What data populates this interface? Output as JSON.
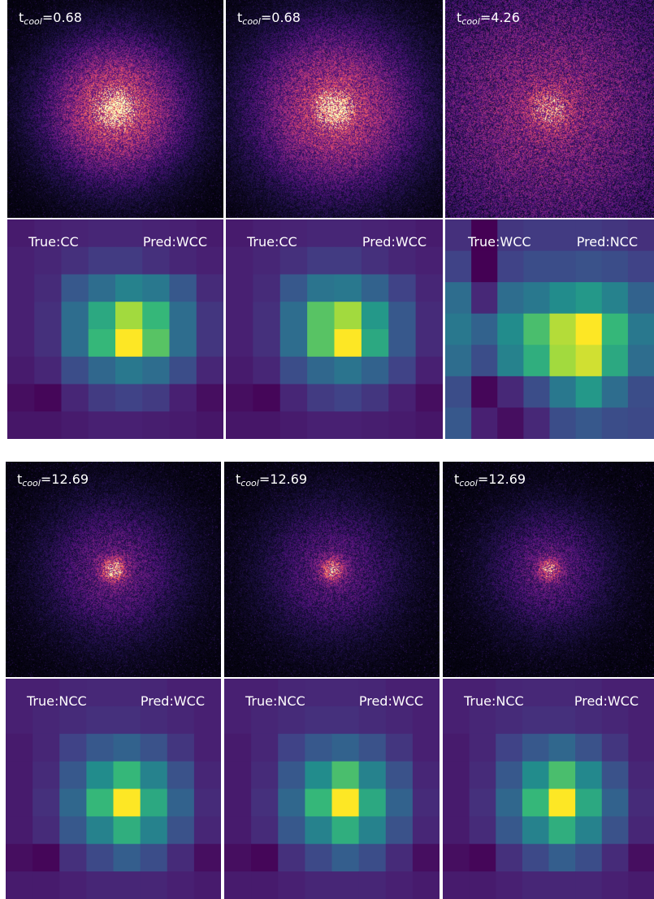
{
  "figure": {
    "groups": [
      {
        "columns": [
          {
            "t_cool": "0.68",
            "true_label": "True:CC",
            "pred_label": "Pred:WCC",
            "xray": {
              "blob_intensity": 0.95,
              "blob_spread": 0.22,
              "background_noise": 0.1,
              "core_brightness": 1.0
            },
            "heatmap": [
              [
                0.1,
                0.12,
                0.13,
                0.14,
                0.14,
                0.13,
                0.12,
                0.1
              ],
              [
                0.12,
                0.14,
                0.18,
                0.22,
                0.22,
                0.18,
                0.14,
                0.12
              ],
              [
                0.12,
                0.16,
                0.35,
                0.45,
                0.55,
                0.5,
                0.35,
                0.16
              ],
              [
                0.12,
                0.18,
                0.45,
                0.7,
                0.9,
                0.75,
                0.45,
                0.2
              ],
              [
                0.12,
                0.18,
                0.45,
                0.75,
                1.0,
                0.8,
                0.45,
                0.2
              ],
              [
                0.1,
                0.14,
                0.3,
                0.42,
                0.5,
                0.45,
                0.3,
                0.14
              ],
              [
                0.05,
                0.02,
                0.14,
                0.22,
                0.25,
                0.22,
                0.12,
                0.05
              ],
              [
                0.08,
                0.08,
                0.1,
                0.12,
                0.12,
                0.11,
                0.1,
                0.08
              ]
            ]
          },
          {
            "t_cool": "0.68",
            "true_label": "True:CC",
            "pred_label": "Pred:WCC",
            "xray": {
              "blob_intensity": 0.85,
              "blob_spread": 0.26,
              "background_noise": 0.1,
              "core_brightness": 0.9
            },
            "heatmap": [
              [
                0.1,
                0.12,
                0.13,
                0.14,
                0.14,
                0.13,
                0.12,
                0.1
              ],
              [
                0.12,
                0.14,
                0.18,
                0.22,
                0.22,
                0.18,
                0.14,
                0.12
              ],
              [
                0.12,
                0.16,
                0.35,
                0.48,
                0.5,
                0.4,
                0.25,
                0.14
              ],
              [
                0.12,
                0.18,
                0.45,
                0.8,
                0.9,
                0.65,
                0.35,
                0.16
              ],
              [
                0.12,
                0.18,
                0.45,
                0.8,
                1.0,
                0.7,
                0.35,
                0.16
              ],
              [
                0.1,
                0.14,
                0.3,
                0.42,
                0.48,
                0.4,
                0.25,
                0.12
              ],
              [
                0.05,
                0.02,
                0.14,
                0.22,
                0.25,
                0.2,
                0.12,
                0.05
              ],
              [
                0.08,
                0.08,
                0.1,
                0.12,
                0.12,
                0.11,
                0.1,
                0.08
              ]
            ]
          },
          {
            "t_cool": "4.26",
            "true_label": "True:WCC",
            "pred_label": "Pred:NCC",
            "xray": {
              "blob_intensity": 0.45,
              "blob_spread": 0.4,
              "background_noise": 0.55,
              "core_brightness": 0.5
            },
            "heatmap": [
              [
                0.18,
                0.0,
                0.2,
                0.22,
                0.22,
                0.22,
                0.2,
                0.18
              ],
              [
                0.25,
                0.0,
                0.25,
                0.3,
                0.3,
                0.32,
                0.3,
                0.25
              ],
              [
                0.45,
                0.15,
                0.45,
                0.5,
                0.6,
                0.65,
                0.55,
                0.4
              ],
              [
                0.5,
                0.4,
                0.6,
                0.78,
                0.92,
                1.0,
                0.75,
                0.5
              ],
              [
                0.45,
                0.3,
                0.55,
                0.72,
                0.9,
                0.95,
                0.7,
                0.45
              ],
              [
                0.3,
                0.02,
                0.15,
                0.3,
                0.5,
                0.65,
                0.45,
                0.3
              ],
              [
                0.35,
                0.12,
                0.05,
                0.15,
                0.3,
                0.35,
                0.3,
                0.28
              ]
            ]
          }
        ]
      },
      {
        "columns": [
          {
            "t_cool": "12.69",
            "true_label": "True:NCC",
            "pred_label": "Pred:WCC",
            "xray": {
              "blob_intensity": 0.45,
              "blob_spread": 0.22,
              "background_noise": 0.12,
              "core_brightness": 0.9
            },
            "heatmap": [
              [
                0.12,
                0.12,
                0.14,
                0.15,
                0.15,
                0.14,
                0.12,
                0.12
              ],
              [
                0.12,
                0.14,
                0.16,
                0.18,
                0.18,
                0.16,
                0.14,
                0.12
              ],
              [
                0.1,
                0.14,
                0.25,
                0.35,
                0.4,
                0.32,
                0.2,
                0.12
              ],
              [
                0.1,
                0.16,
                0.35,
                0.6,
                0.75,
                0.55,
                0.32,
                0.14
              ],
              [
                0.1,
                0.18,
                0.42,
                0.75,
                1.0,
                0.7,
                0.4,
                0.16
              ],
              [
                0.1,
                0.16,
                0.35,
                0.55,
                0.72,
                0.55,
                0.32,
                0.14
              ],
              [
                0.05,
                0.02,
                0.18,
                0.28,
                0.38,
                0.3,
                0.16,
                0.05
              ],
              [
                0.1,
                0.1,
                0.12,
                0.14,
                0.14,
                0.14,
                0.12,
                0.1
              ]
            ]
          },
          {
            "t_cool": "12.69",
            "true_label": "True:NCC",
            "pred_label": "Pred:WCC",
            "xray": {
              "blob_intensity": 0.4,
              "blob_spread": 0.22,
              "background_noise": 0.12,
              "core_brightness": 0.8
            },
            "heatmap": [
              [
                0.12,
                0.12,
                0.14,
                0.15,
                0.15,
                0.14,
                0.12,
                0.12
              ],
              [
                0.12,
                0.14,
                0.16,
                0.18,
                0.18,
                0.16,
                0.14,
                0.12
              ],
              [
                0.1,
                0.14,
                0.25,
                0.35,
                0.4,
                0.32,
                0.2,
                0.12
              ],
              [
                0.1,
                0.16,
                0.35,
                0.6,
                0.78,
                0.55,
                0.32,
                0.14
              ],
              [
                0.1,
                0.18,
                0.42,
                0.75,
                1.0,
                0.7,
                0.4,
                0.16
              ],
              [
                0.1,
                0.16,
                0.35,
                0.55,
                0.72,
                0.55,
                0.32,
                0.14
              ],
              [
                0.05,
                0.02,
                0.18,
                0.28,
                0.38,
                0.3,
                0.16,
                0.05
              ],
              [
                0.1,
                0.1,
                0.12,
                0.14,
                0.14,
                0.14,
                0.12,
                0.1
              ]
            ]
          },
          {
            "t_cool": "12.69",
            "true_label": "True:NCC",
            "pred_label": "Pred:WCC",
            "xray": {
              "blob_intensity": 0.42,
              "blob_spread": 0.2,
              "background_noise": 0.12,
              "core_brightness": 0.8
            },
            "heatmap": [
              [
                0.12,
                0.12,
                0.14,
                0.15,
                0.15,
                0.14,
                0.12,
                0.12
              ],
              [
                0.12,
                0.14,
                0.16,
                0.18,
                0.18,
                0.16,
                0.14,
                0.12
              ],
              [
                0.1,
                0.14,
                0.25,
                0.35,
                0.42,
                0.32,
                0.2,
                0.12
              ],
              [
                0.1,
                0.16,
                0.35,
                0.6,
                0.78,
                0.58,
                0.32,
                0.14
              ],
              [
                0.1,
                0.18,
                0.42,
                0.75,
                1.0,
                0.7,
                0.4,
                0.16
              ],
              [
                0.1,
                0.16,
                0.35,
                0.55,
                0.72,
                0.55,
                0.32,
                0.14
              ],
              [
                0.05,
                0.02,
                0.18,
                0.28,
                0.38,
                0.3,
                0.16,
                0.05
              ],
              [
                0.1,
                0.1,
                0.12,
                0.14,
                0.14,
                0.14,
                0.12,
                0.1
              ]
            ]
          }
        ]
      }
    ],
    "t_cool_prefix": "t",
    "t_cool_subscript": "cool",
    "colormaps": {
      "xray": "magma",
      "heatmap": "viridis"
    }
  }
}
